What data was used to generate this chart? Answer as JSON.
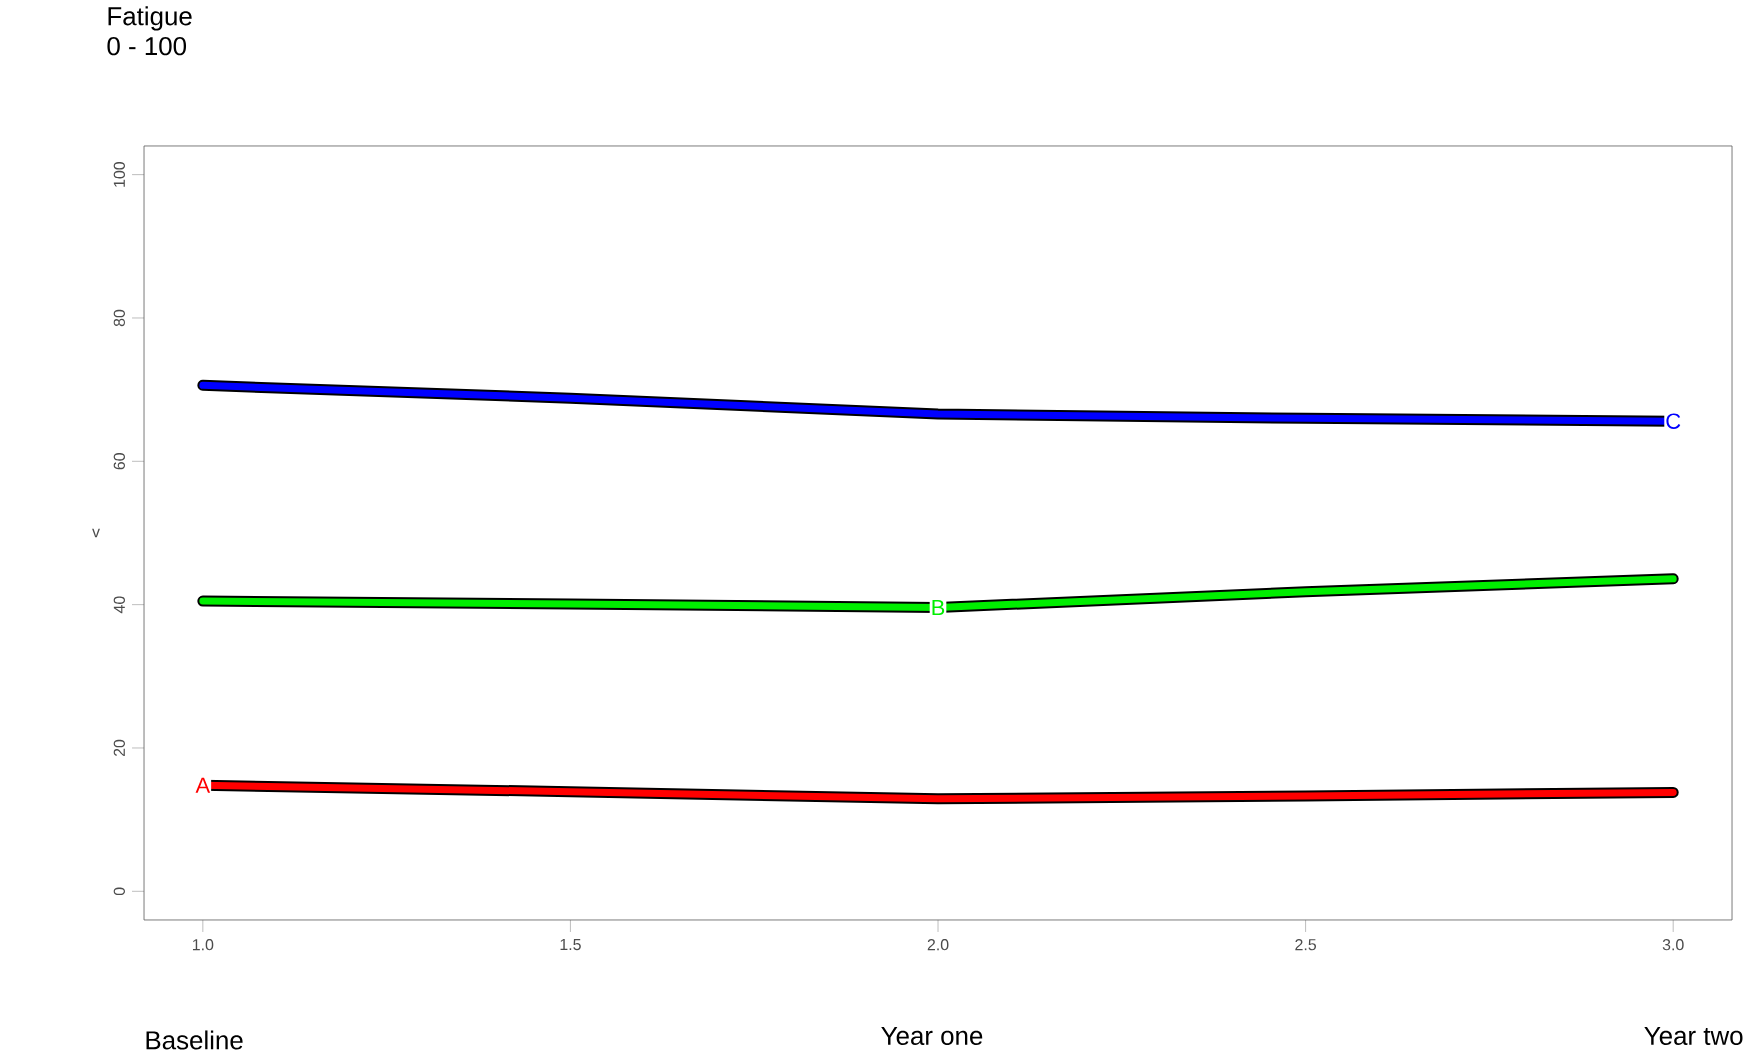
{
  "chart_data": {
    "type": "line",
    "title": "Fatigue",
    "subtitle": "0 - 100",
    "ylabel": "v",
    "x": [
      1,
      1.5,
      2,
      2.5,
      3
    ],
    "series": [
      {
        "color": "#ff0000",
        "values": [
          14.8,
          13.9,
          12.9,
          13.3,
          13.8
        ]
      },
      {
        "color": "#00ee00",
        "values": [
          40.5,
          40.1,
          39.6,
          41.8,
          43.6
        ]
      },
      {
        "color": "#0000ff",
        "values": [
          70.6,
          68.8,
          66.6,
          66.0,
          65.6
        ]
      }
    ],
    "annotations": [
      {
        "text": "A",
        "x": 1,
        "y": 14.8
      },
      {
        "text": "B",
        "x": 2,
        "y": 39.6
      },
      {
        "text": "C",
        "x": 3,
        "y": 65.6
      },
      "Baseline",
      "Year one",
      "Year two"
    ],
    "xlim": [
      0.92,
      3.08
    ],
    "ylim": [
      -4,
      104
    ],
    "xticks": [
      {
        "value": 1,
        "label": "1.0"
      },
      {
        "value": 1.5,
        "label": "1.5"
      },
      {
        "value": 2,
        "label": "2.0"
      },
      {
        "value": 2.5,
        "label": "2.5"
      },
      {
        "value": 3,
        "label": "3.0"
      }
    ],
    "yticks": [
      0,
      20,
      40,
      60,
      80,
      100
    ],
    "grid": false,
    "marker": "none",
    "line_style": "solid"
  }
}
